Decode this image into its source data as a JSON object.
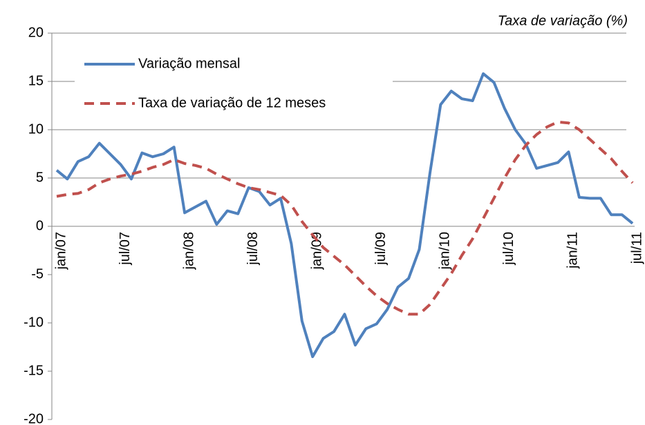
{
  "chart_data": {
    "type": "line",
    "title": "Taxa de variação (%)",
    "categories": [
      "jan/07",
      null,
      null,
      null,
      null,
      null,
      "jul/07",
      null,
      null,
      null,
      null,
      null,
      "jan/08",
      null,
      null,
      null,
      null,
      null,
      "jul/08",
      null,
      null,
      null,
      null,
      null,
      "jan/09",
      null,
      null,
      null,
      null,
      null,
      "jul/09",
      null,
      null,
      null,
      null,
      null,
      "jan/10",
      null,
      null,
      null,
      null,
      null,
      "jul/10",
      null,
      null,
      null,
      null,
      null,
      "jan/11",
      null,
      null,
      null,
      null,
      null,
      "jul/11"
    ],
    "series": [
      {
        "name": "Variação mensal",
        "color": "#4f81bd",
        "dash": false,
        "values": [
          5.8,
          4.9,
          6.7,
          7.2,
          8.6,
          7.5,
          6.4,
          4.9,
          7.6,
          7.2,
          7.5,
          8.2,
          1.4,
          2.0,
          2.6,
          0.2,
          1.6,
          1.3,
          4.0,
          3.6,
          2.2,
          2.9,
          -1.8,
          -9.8,
          -13.5,
          -11.6,
          -10.9,
          -9.1,
          -12.3,
          -10.6,
          -10.1,
          -8.6,
          -6.3,
          -5.4,
          -2.4,
          5.5,
          12.6,
          14.0,
          13.2,
          13.0,
          15.8,
          14.9,
          12.2,
          10.0,
          8.5,
          6.0,
          6.3,
          6.6,
          7.7,
          3.0,
          2.9,
          2.9,
          1.2,
          1.2,
          0.3
        ]
      },
      {
        "name": "Taxa de variação de 12 meses",
        "color": "#c0504d",
        "dash": true,
        "values": [
          3.1,
          3.3,
          3.4,
          3.8,
          4.5,
          4.9,
          5.2,
          5.4,
          5.7,
          6.1,
          6.4,
          6.9,
          6.5,
          6.3,
          6.0,
          5.4,
          4.9,
          4.4,
          4.0,
          3.8,
          3.5,
          3.2,
          2.2,
          0.5,
          -0.9,
          -2.2,
          -3.1,
          -4.0,
          -5.1,
          -6.2,
          -7.2,
          -8.0,
          -8.6,
          -9.1,
          -9.1,
          -8.1,
          -6.5,
          -4.9,
          -3.0,
          -1.3,
          0.8,
          2.9,
          5.0,
          6.9,
          8.4,
          9.5,
          10.3,
          10.8,
          10.7,
          10.0,
          9.0,
          8.0,
          7.0,
          5.7,
          4.5
        ]
      }
    ],
    "ylim": [
      -20,
      20
    ],
    "yticks": [
      -20,
      -15,
      -10,
      -5,
      0,
      5,
      10,
      15,
      20
    ],
    "grid": true,
    "legend": "upper left"
  }
}
